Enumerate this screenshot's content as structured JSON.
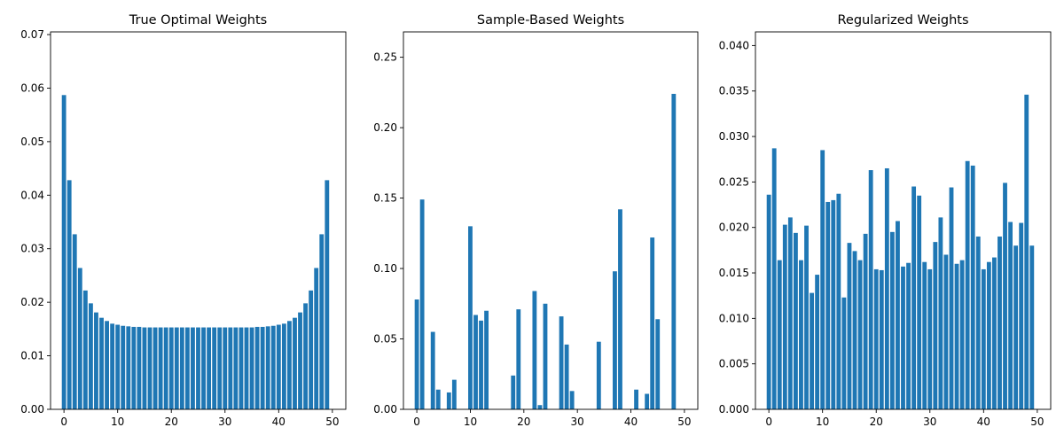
{
  "chart_data": [
    {
      "type": "bar",
      "title": "True Optimal Weights",
      "xlabel": "",
      "ylabel": "",
      "xlim": [
        -2.5,
        52.5
      ],
      "ylim": [
        0,
        0.0705
      ],
      "xticks": [
        0,
        10,
        20,
        30,
        40,
        50
      ],
      "yticks": [
        0.0,
        0.01,
        0.02,
        0.03,
        0.04,
        0.05,
        0.06,
        0.07
      ],
      "ytick_decimals": 2,
      "grid": false,
      "color": "#1f77b4",
      "x": [
        0,
        1,
        2,
        3,
        4,
        5,
        6,
        7,
        8,
        9,
        10,
        11,
        12,
        13,
        14,
        15,
        16,
        17,
        18,
        19,
        20,
        21,
        22,
        23,
        24,
        25,
        26,
        27,
        28,
        29,
        30,
        31,
        32,
        33,
        34,
        35,
        36,
        37,
        38,
        39,
        40,
        41,
        42,
        43,
        44,
        45,
        46,
        47,
        48,
        49
      ],
      "values": [
        0.0587,
        0.0428,
        0.0327,
        0.0264,
        0.0222,
        0.0198,
        0.0181,
        0.0171,
        0.0165,
        0.016,
        0.0158,
        0.0156,
        0.0155,
        0.0154,
        0.0154,
        0.0153,
        0.0153,
        0.0153,
        0.0153,
        0.0153,
        0.0153,
        0.0153,
        0.0153,
        0.0153,
        0.0153,
        0.0153,
        0.0153,
        0.0153,
        0.0153,
        0.0153,
        0.0153,
        0.0153,
        0.0153,
        0.0153,
        0.0153,
        0.0153,
        0.0154,
        0.0154,
        0.0155,
        0.0156,
        0.0158,
        0.016,
        0.0165,
        0.0171,
        0.0181,
        0.0198,
        0.0222,
        0.0264,
        0.0327,
        0.0428
      ]
    },
    {
      "type": "bar",
      "title": "Sample-Based Weights",
      "xlabel": "",
      "ylabel": "",
      "xlim": [
        -2.5,
        52.5
      ],
      "ylim": [
        0,
        0.268
      ],
      "xticks": [
        0,
        10,
        20,
        30,
        40,
        50
      ],
      "yticks": [
        0.0,
        0.05,
        0.1,
        0.15,
        0.2,
        0.25
      ],
      "ytick_decimals": 2,
      "grid": false,
      "color": "#1f77b4",
      "x": [
        0,
        1,
        2,
        3,
        4,
        5,
        6,
        7,
        8,
        9,
        10,
        11,
        12,
        13,
        14,
        15,
        16,
        17,
        18,
        19,
        20,
        21,
        22,
        23,
        24,
        25,
        26,
        27,
        28,
        29,
        30,
        31,
        32,
        33,
        34,
        35,
        36,
        37,
        38,
        39,
        40,
        41,
        42,
        43,
        44,
        45,
        46,
        47,
        48,
        49
      ],
      "values": [
        0.078,
        0.149,
        0,
        0.055,
        0.014,
        0,
        0.012,
        0.021,
        0,
        0,
        0.13,
        0.067,
        0.063,
        0.07,
        0,
        0,
        0,
        0,
        0.024,
        0.071,
        0,
        0,
        0.084,
        0.003,
        0.075,
        0,
        0,
        0.066,
        0.046,
        0.013,
        0,
        0,
        0,
        0,
        0.048,
        0,
        0,
        0.098,
        0.142,
        0,
        0,
        0.014,
        0,
        0.011,
        0.122,
        0.064,
        0,
        0,
        0.224,
        0
      ]
    },
    {
      "type": "bar",
      "title": "Regularized Weights",
      "xlabel": "",
      "ylabel": "",
      "xlim": [
        -2.5,
        52.5
      ],
      "ylim": [
        0,
        0.0415
      ],
      "xticks": [
        0,
        10,
        20,
        30,
        40,
        50
      ],
      "yticks": [
        0.0,
        0.005,
        0.01,
        0.015,
        0.02,
        0.025,
        0.03,
        0.035,
        0.04
      ],
      "ytick_decimals": 3,
      "grid": false,
      "color": "#1f77b4",
      "x": [
        0,
        1,
        2,
        3,
        4,
        5,
        6,
        7,
        8,
        9,
        10,
        11,
        12,
        13,
        14,
        15,
        16,
        17,
        18,
        19,
        20,
        21,
        22,
        23,
        24,
        25,
        26,
        27,
        28,
        29,
        30,
        31,
        32,
        33,
        34,
        35,
        36,
        37,
        38,
        39,
        40,
        41,
        42,
        43,
        44,
        45,
        46,
        47,
        48,
        49
      ],
      "values": [
        0.0236,
        0.0287,
        0.0164,
        0.0203,
        0.0211,
        0.0194,
        0.0164,
        0.0202,
        0.0128,
        0.0148,
        0.0285,
        0.0228,
        0.023,
        0.0237,
        0.0123,
        0.0183,
        0.0174,
        0.0164,
        0.0193,
        0.0263,
        0.0154,
        0.0153,
        0.0265,
        0.0195,
        0.0207,
        0.0157,
        0.0161,
        0.0245,
        0.0235,
        0.0162,
        0.0154,
        0.0184,
        0.0211,
        0.017,
        0.0244,
        0.016,
        0.0164,
        0.0273,
        0.0268,
        0.019,
        0.0154,
        0.0162,
        0.0167,
        0.019,
        0.0249,
        0.0206,
        0.018,
        0.0205,
        0.0346,
        0.018
      ]
    }
  ]
}
